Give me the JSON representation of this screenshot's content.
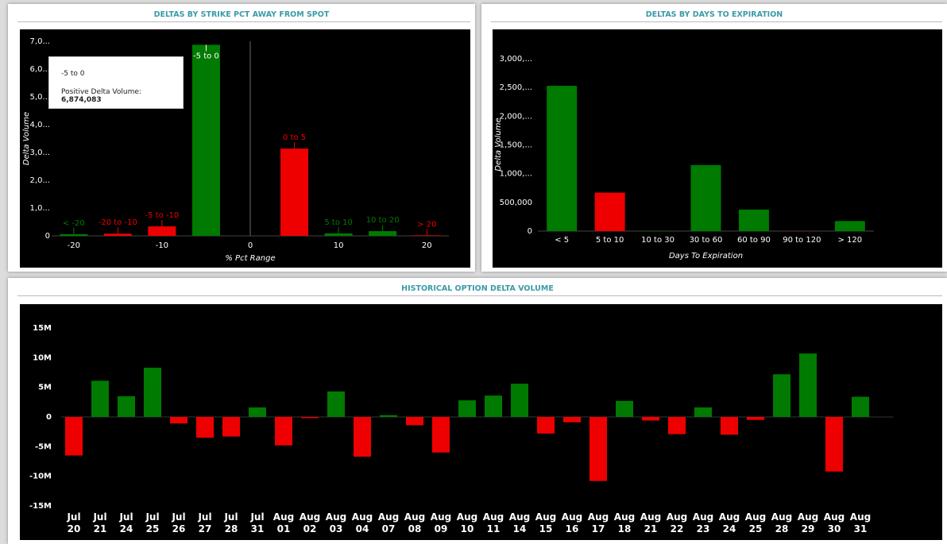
{
  "chart_data": [
    {
      "type": "bar",
      "title": "DELTAS BY STRIKE PCT AWAY FROM SPOT",
      "x_label": "% Pct Range",
      "y_label": "Delta Volume",
      "categories": [
        "< -20",
        "-20 to -10",
        "-5 to -10",
        "-5 to 0",
        "0 to 5",
        "5 to 10",
        "10 to 20",
        "> 20"
      ],
      "x": [
        -20,
        -15,
        -10,
        -5,
        5,
        10,
        15,
        20
      ],
      "values": [
        60000,
        80000,
        340000,
        6874083,
        3140000,
        90000,
        170000,
        20000
      ],
      "colors": [
        "#007a00",
        "#ee0000",
        "#ee0000",
        "#007a00",
        "#ee0000",
        "#007a00",
        "#007a00",
        "#ee0000"
      ],
      "xlim": [
        -22.5,
        22.5
      ],
      "xticks": [
        -20,
        -10,
        0,
        10,
        20
      ],
      "ylim": [
        0,
        7000000
      ],
      "yticks": [
        0,
        {
          "value": 1000000,
          "label": "1,0..."
        },
        {
          "value": 2000000,
          "label": "2,0..."
        },
        {
          "value": 3000000,
          "label": "3,0..."
        },
        {
          "value": 4000000,
          "label": "4,0..."
        },
        {
          "value": 5000000,
          "label": "5,0..."
        },
        {
          "value": 6000000,
          "label": "6,0..."
        },
        {
          "value": 7000000,
          "label": "7,0..."
        }
      ],
      "tooltip": {
        "category": "-5 to 0",
        "name": "Positive Delta Volume:",
        "value_label": "6,874,083"
      }
    },
    {
      "type": "bar",
      "title": "DELTAS BY DAYS TO EXPIRATION",
      "x_label": "Days To Expiration",
      "y_label": "Delta Volume",
      "categories": [
        "< 5",
        "5 to 10",
        "10 to 30",
        "30 to 60",
        "60 to 90",
        "90 to 120",
        "> 120"
      ],
      "values": [
        2530000,
        670000,
        5000,
        1150000,
        375000,
        3000,
        175000
      ],
      "colors": [
        "#007a00",
        "#ee0000",
        "#007a00",
        "#007a00",
        "#007a00",
        "#ee0000",
        "#007a00"
      ],
      "ylim": [
        0,
        3250000
      ],
      "yticks": [
        0,
        {
          "value": 500000,
          "label": "500,000"
        },
        {
          "value": 1000000,
          "label": "1,000,..."
        },
        {
          "value": 1500000,
          "label": "1,500,..."
        },
        {
          "value": 2000000,
          "label": "2,000,..."
        },
        {
          "value": 2500000,
          "label": "2,500,..."
        },
        {
          "value": 3000000,
          "label": "3,000,..."
        }
      ]
    },
    {
      "type": "bar",
      "title": "HISTORICAL OPTION DELTA VOLUME",
      "categories": [
        "Jul 20",
        "Jul 21",
        "Jul 24",
        "Jul 25",
        "Jul 26",
        "Jul 27",
        "Jul 28",
        "Jul 31",
        "Aug 01",
        "Aug 02",
        "Aug 03",
        "Aug 04",
        "Aug 07",
        "Aug 08",
        "Aug 09",
        "Aug 10",
        "Aug 11",
        "Aug 14",
        "Aug 15",
        "Aug 16",
        "Aug 17",
        "Aug 18",
        "Aug 21",
        "Aug 22",
        "Aug 23",
        "Aug 24",
        "Aug 25",
        "Aug 28",
        "Aug 29",
        "Aug 30",
        "Aug 31"
      ],
      "values": [
        -6500000,
        6100000,
        3500000,
        8300000,
        -1100000,
        -3500000,
        -3300000,
        1600000,
        -4800000,
        -200000,
        4300000,
        -6700000,
        300000,
        -1400000,
        -6000000,
        2800000,
        3600000,
        5600000,
        -2800000,
        -900000,
        -10800000,
        2700000,
        -600000,
        -2900000,
        1600000,
        -3000000,
        -500000,
        7200000,
        10700000,
        -9200000,
        3400000
      ],
      "color_positive": "#007a00",
      "color_negative": "#ee0000",
      "ylim": [
        -15000000,
        15000000
      ],
      "yticks": [
        {
          "value": -15000000,
          "label": "-15M"
        },
        {
          "value": -10000000,
          "label": "-10M"
        },
        {
          "value": -5000000,
          "label": "-5M"
        },
        0,
        {
          "value": 5000000,
          "label": "5M"
        },
        {
          "value": 10000000,
          "label": "10M"
        },
        {
          "value": 15000000,
          "label": "15M"
        }
      ]
    }
  ]
}
